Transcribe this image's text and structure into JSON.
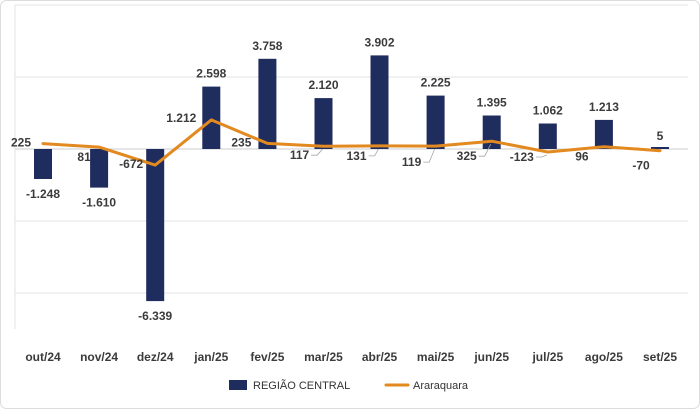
{
  "chart_data": {
    "type": "bar",
    "title": "",
    "xlabel": "",
    "ylabel": "",
    "categories": [
      "out/24",
      "nov/24",
      "dez/24",
      "jan/25",
      "fev/25",
      "mar/25",
      "abr/25",
      "mai/25",
      "jun/25",
      "jul/25",
      "ago/25",
      "set/25"
    ],
    "ylim": [
      -7500,
      6000
    ],
    "grid": true,
    "grid_step": 3000,
    "legend": "bottom-center",
    "series": [
      {
        "name": "REGIÃO CENTRAL",
        "type": "bar",
        "color": "#1f2c5e",
        "values": [
          -1248,
          -1610,
          -6339,
          2598,
          3758,
          2120,
          3902,
          2225,
          1395,
          1062,
          1213,
          5
        ],
        "labels": [
          "-1.248",
          "-1.610",
          "-6.339",
          "2.598",
          "3.758",
          "2.120",
          "3.902",
          "2.225",
          "1.395",
          "1.062",
          "1.213",
          "5"
        ]
      },
      {
        "name": "Araraquara",
        "type": "line",
        "color": "#e2891f",
        "values": [
          225,
          81,
          -672,
          1212,
          235,
          117,
          131,
          119,
          325,
          -123,
          96,
          -70
        ],
        "labels": [
          "225",
          "81",
          "-672",
          "1.212",
          "235",
          "117",
          "131",
          "119",
          "325",
          "-123",
          "96",
          "-70"
        ]
      }
    ]
  }
}
